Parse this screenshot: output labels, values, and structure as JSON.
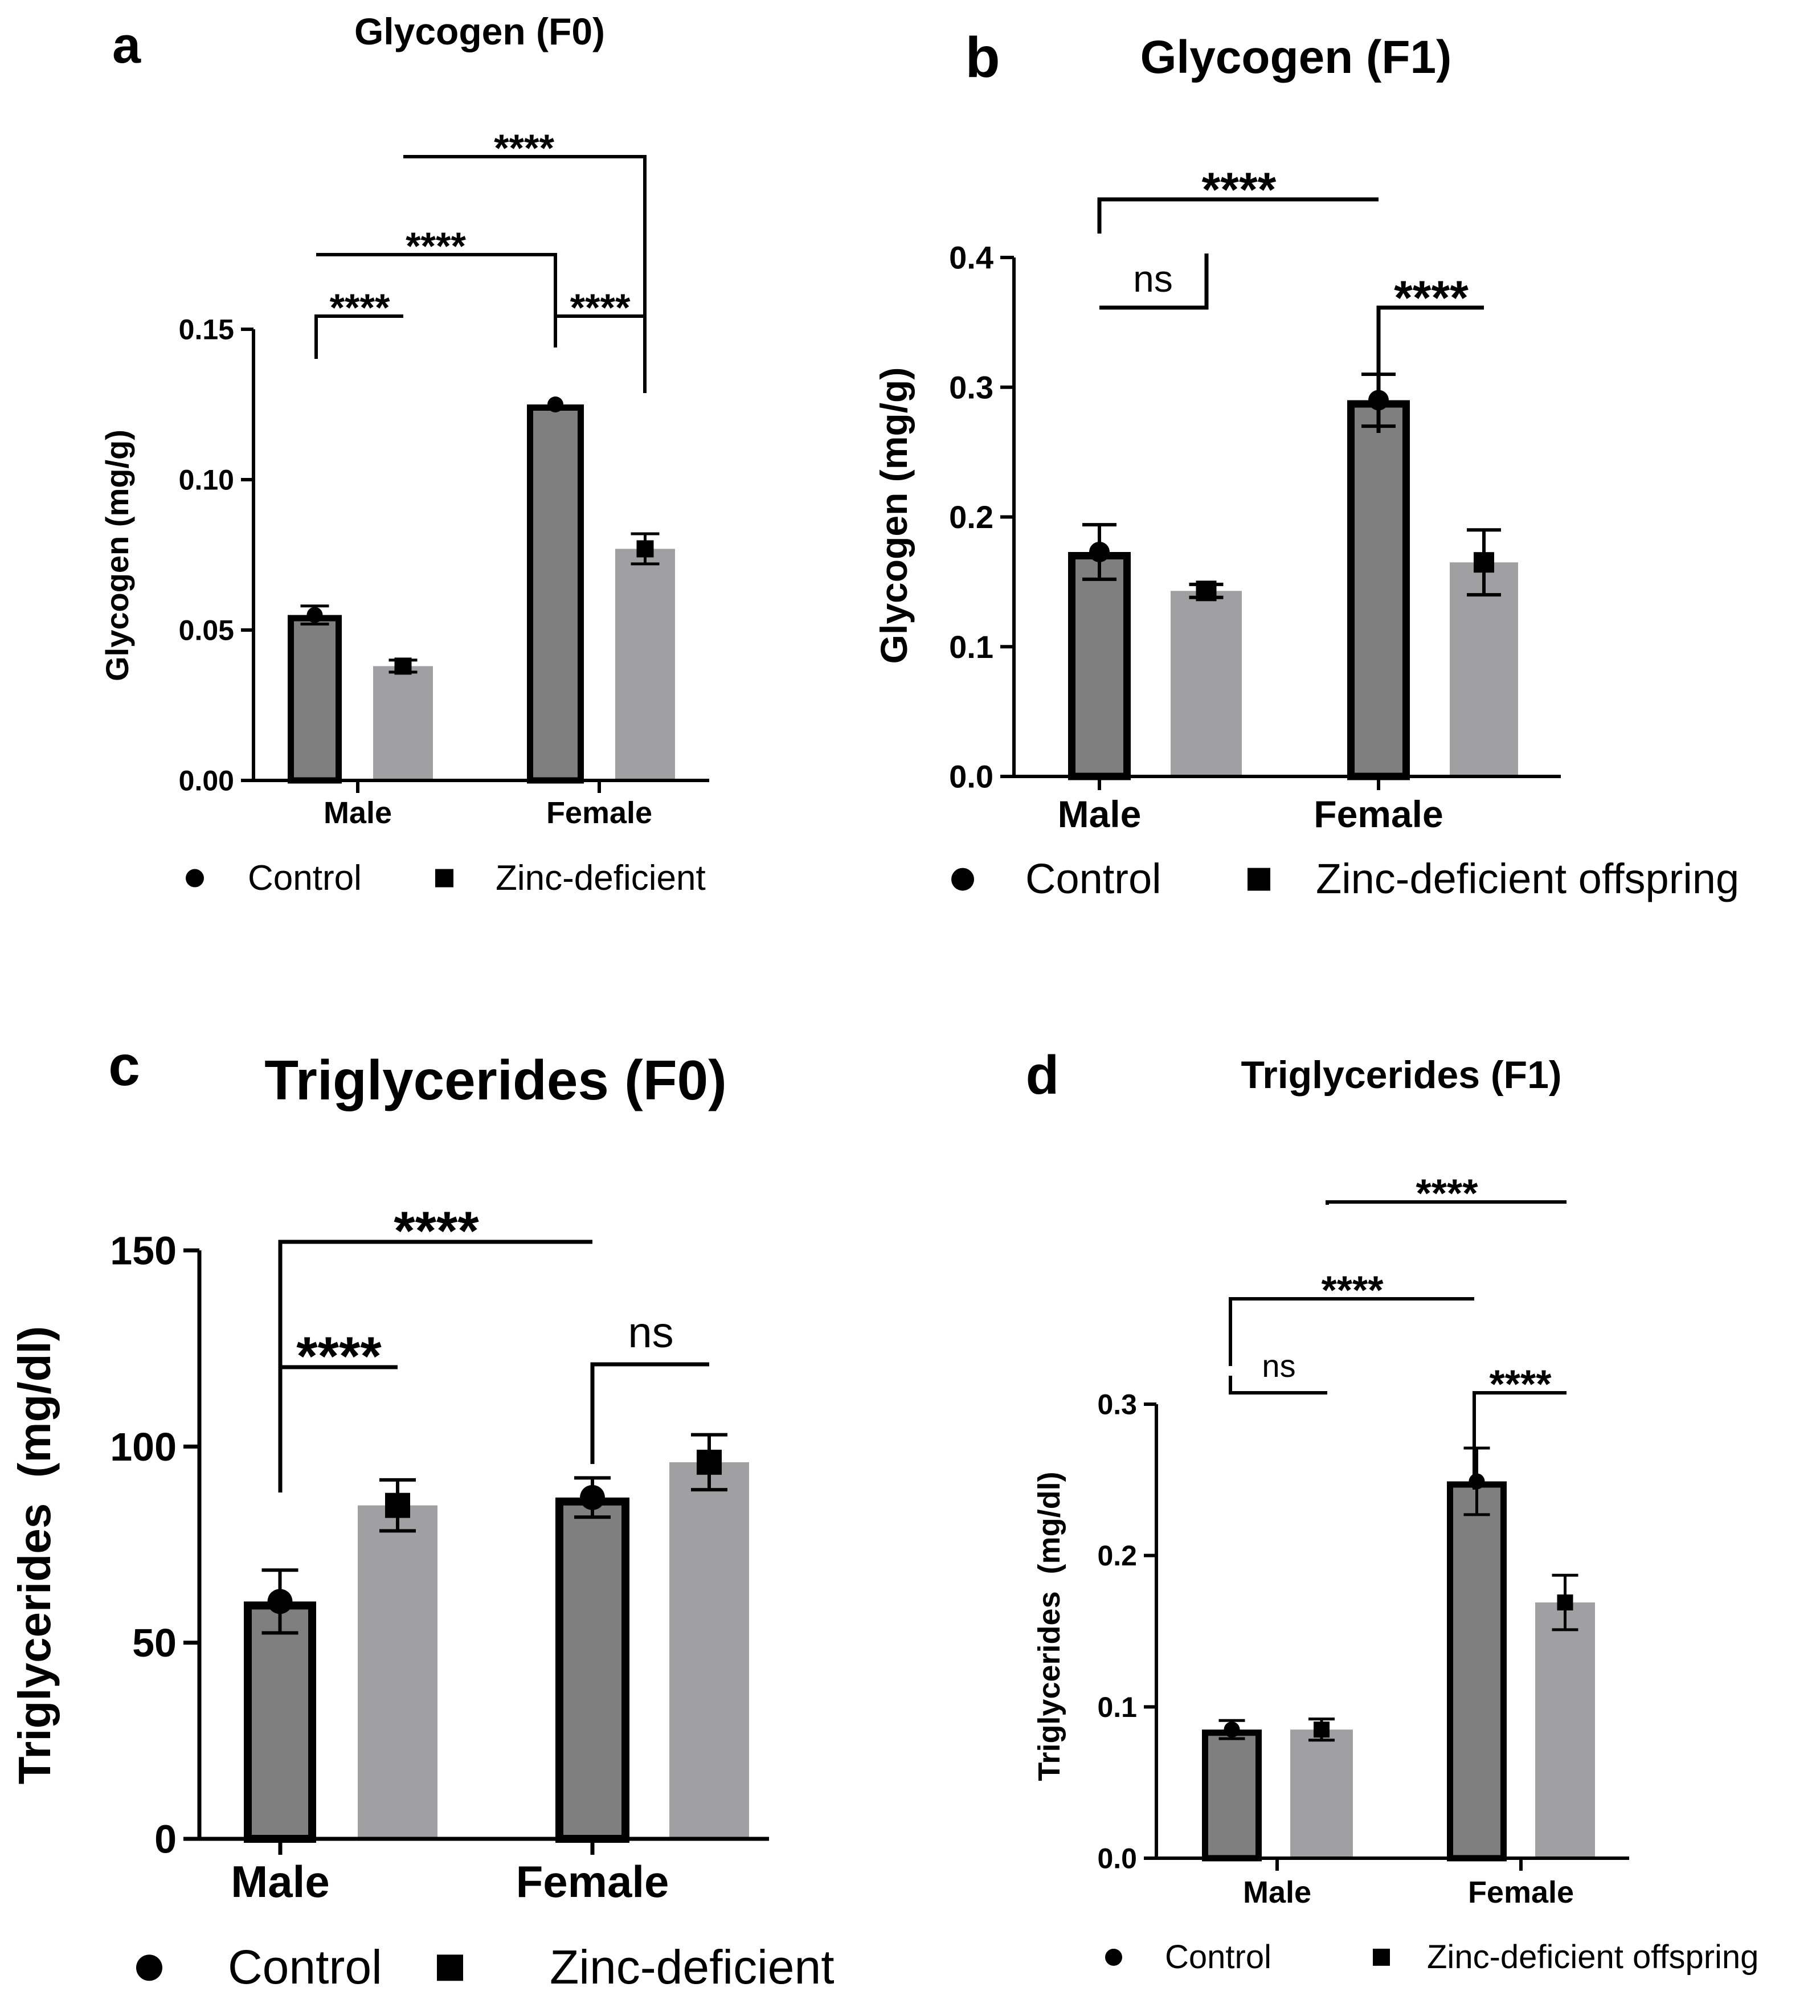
{
  "panels": [
    {
      "letter": "a",
      "chart_data": {
        "type": "bar",
        "title": "Glycogen (F0)",
        "categories": [
          "Male",
          "Female"
        ],
        "series": [
          {
            "name": "Control",
            "marker": "circle",
            "values": [
              0.055,
              0.125
            ],
            "errors": [
              0.003,
              0.0
            ]
          },
          {
            "name": "Zinc-deficient",
            "marker": "square",
            "values": [
              0.038,
              0.077
            ],
            "errors": [
              0.002,
              0.005
            ]
          }
        ],
        "xlabel": "",
        "ylabel": "Glycogen (mg/g)",
        "ylim": [
          0,
          0.15
        ],
        "yticks": [
          "0.00",
          "0.05",
          "0.10",
          "0.15"
        ],
        "grid": false,
        "legend_position": "bottom",
        "significance": [
          {
            "label": "****",
            "from": [
              0,
              0
            ],
            "to": [
              0,
              1
            ]
          },
          {
            "label": "****",
            "from": [
              1,
              0
            ],
            "to": [
              1,
              1
            ]
          },
          {
            "label": "****",
            "from": [
              0,
              0
            ],
            "to": [
              1,
              0
            ]
          },
          {
            "label": "****",
            "from": [
              0,
              1
            ],
            "to": [
              1,
              1
            ]
          }
        ]
      }
    },
    {
      "letter": "b",
      "chart_data": {
        "type": "bar",
        "title": "Glycogen (F1)",
        "categories": [
          "Male",
          "Female"
        ],
        "series": [
          {
            "name": "Control",
            "marker": "circle",
            "values": [
              0.173,
              0.29
            ],
            "errors": [
              0.021,
              0.02
            ]
          },
          {
            "name": "Zinc-deficient offspring",
            "marker": "square",
            "values": [
              0.143,
              0.165
            ],
            "errors": [
              0.005,
              0.025
            ]
          }
        ],
        "xlabel": "",
        "ylabel": "Glycogen (mg/g)",
        "ylim": [
          0,
          0.4
        ],
        "yticks": [
          "0.0",
          "0.1",
          "0.2",
          "0.3",
          "0.4"
        ],
        "grid": false,
        "legend_position": "bottom",
        "significance": [
          {
            "label": "ns",
            "from": [
              0,
              0
            ],
            "to": [
              0,
              1
            ]
          },
          {
            "label": "****",
            "from": [
              1,
              0
            ],
            "to": [
              1,
              1
            ]
          },
          {
            "label": "****",
            "from": [
              0,
              0
            ],
            "to": [
              1,
              0
            ]
          }
        ]
      }
    },
    {
      "letter": "c",
      "chart_data": {
        "type": "bar",
        "title": "Triglycerides (F0)",
        "categories": [
          "Male",
          "Female"
        ],
        "series": [
          {
            "name": "Control",
            "marker": "circle",
            "values": [
              60.5,
              87
            ],
            "errors": [
              8,
              5
            ]
          },
          {
            "name": "Zinc-deficient",
            "marker": "square",
            "values": [
              85,
              96
            ],
            "errors": [
              6.5,
              7
            ]
          }
        ],
        "xlabel": "",
        "ylabel": "Triglycerides  (mg/dl)",
        "ylim": [
          0,
          150
        ],
        "yticks": [
          "0",
          "50",
          "100",
          "150"
        ],
        "grid": false,
        "legend_position": "bottom",
        "significance": [
          {
            "label": "****",
            "from": [
              0,
              0
            ],
            "to": [
              0,
              1
            ]
          },
          {
            "label": "ns",
            "from": [
              1,
              0
            ],
            "to": [
              1,
              1
            ]
          },
          {
            "label": "****",
            "from": [
              0,
              0
            ],
            "to": [
              1,
              0
            ]
          }
        ]
      }
    },
    {
      "letter": "d",
      "chart_data": {
        "type": "bar",
        "title": "Triglycerides (F1)",
        "categories": [
          "Male",
          "Female"
        ],
        "series": [
          {
            "name": "Control",
            "marker": "circle",
            "values": [
              0.085,
              0.249
            ],
            "errors": [
              0.006,
              0.022
            ]
          },
          {
            "name": "Zinc-deficient offspring",
            "marker": "square",
            "values": [
              0.085,
              0.169
            ],
            "errors": [
              0.007,
              0.018
            ]
          }
        ],
        "xlabel": "",
        "ylabel": "Triglycerides  (mg/dl)",
        "ylim": [
          0,
          0.3
        ],
        "yticks": [
          "0.0",
          "0.1",
          "0.2",
          "0.3"
        ],
        "grid": false,
        "legend_position": "bottom",
        "significance": [
          {
            "label": "ns",
            "from": [
              0,
              0
            ],
            "to": [
              0,
              1
            ]
          },
          {
            "label": "****",
            "from": [
              1,
              0
            ],
            "to": [
              1,
              1
            ]
          },
          {
            "label": "****",
            "from": [
              0,
              0
            ],
            "to": [
              1,
              0
            ]
          },
          {
            "label": "****",
            "from": [
              0,
              1
            ],
            "to": [
              1,
              1
            ]
          }
        ]
      }
    }
  ],
  "colors": {
    "control_bar": "#7f7f7f",
    "zinc_bar": "#a0a0a3",
    "ink": "#000000"
  }
}
